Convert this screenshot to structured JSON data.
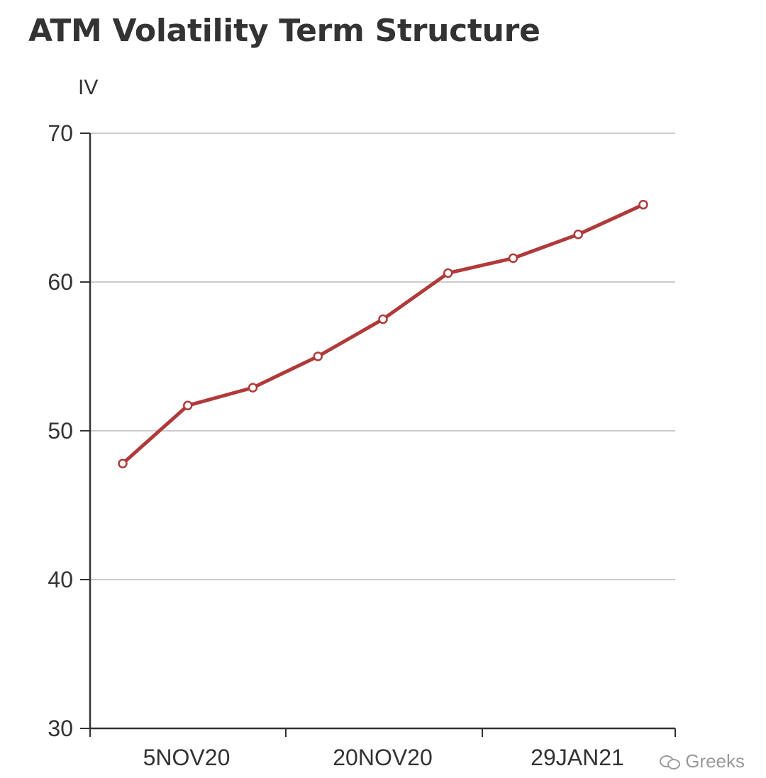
{
  "chart_data": {
    "type": "line",
    "title": "ATM Volatility Term Structure",
    "ylabel": "IV",
    "xlabel": "",
    "ylim": [
      30,
      70
    ],
    "yticks": [
      30,
      40,
      50,
      60,
      70
    ],
    "x_tick_labels": [
      "5NOV20",
      "20NOV20",
      "29JAN21"
    ],
    "grid": "horizontal",
    "line_color": "#b03a3a",
    "series": [
      {
        "values": [
          47.8,
          51.7,
          52.9,
          55.0,
          57.5,
          60.6,
          61.6,
          63.2,
          65.2
        ]
      }
    ]
  },
  "watermark": {
    "icon": "wechat-icon",
    "text": "Greeks"
  }
}
